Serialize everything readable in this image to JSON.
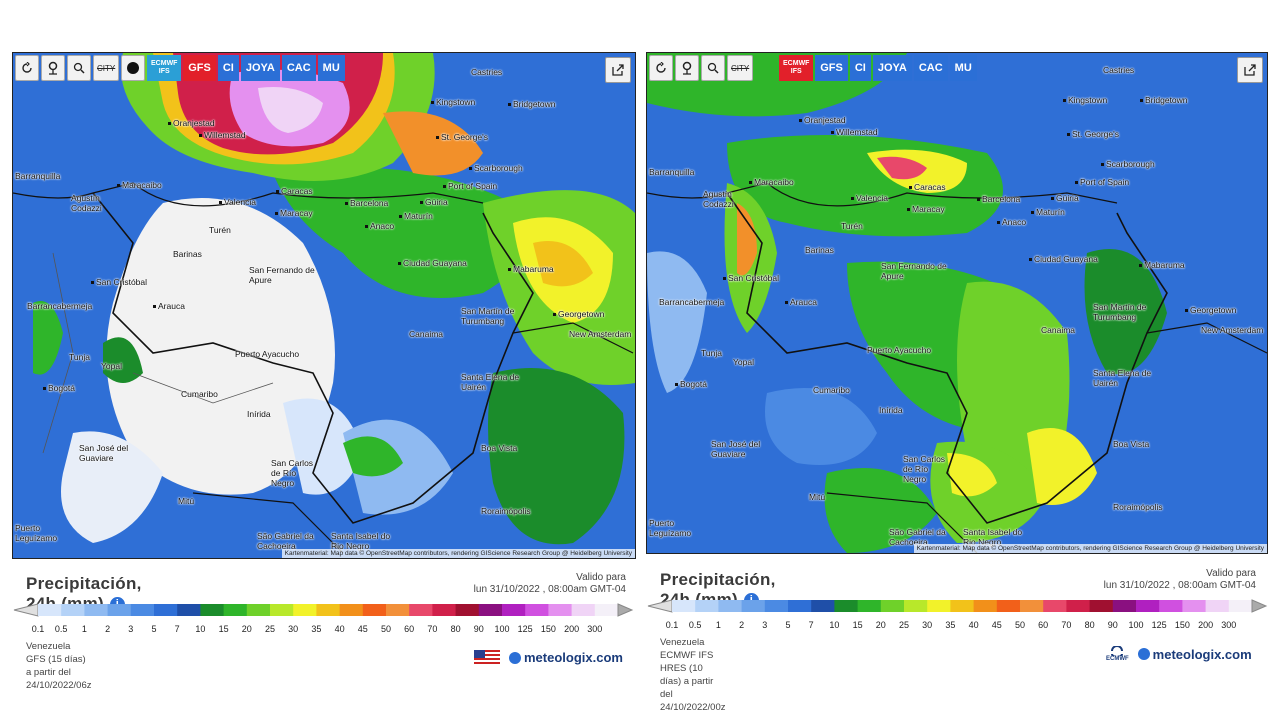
{
  "toolbar": {
    "city_label": "CITY",
    "models_left": [
      "ECMWF IFS",
      "GFS",
      "CI",
      "JOYA",
      "CAC",
      "MU"
    ],
    "active_left": "GFS",
    "models_right": [
      "ECMWF IFS",
      "GFS",
      "CI",
      "JOYA",
      "CAC",
      "MU"
    ],
    "active_right": "ECMWF IFS"
  },
  "cities": [
    "Castries",
    "Kingstown",
    "Bridgetown",
    "Oranjestad",
    "Willemstad",
    "St. George's",
    "Scarborough",
    "Port of Spain",
    "Barranquilla",
    "Maracaibo",
    "Caracas",
    "Valencia",
    "Maracay",
    "Barcelona",
    "Güiria",
    "Maturín",
    "Agustín Codazzi",
    "Anaco",
    "Turén",
    "Barinas",
    "Ciudad Guayana",
    "Mabaruma",
    "San Fernando de Apure",
    "San Cristóbal",
    "Arauca",
    "Barrancabermeja",
    "San Martín de Turumbang",
    "Georgetown",
    "New Amsterdam",
    "Canaima",
    "Puerto Ayacucho",
    "Tunja",
    "Yopal",
    "Santa Elena de Uairén",
    "Bogotá",
    "Cumaribo",
    "Inírida",
    "Boa Vista",
    "San José del Guaviare",
    "San Carlos de Río Negro",
    "Mitú",
    "Roraimópolis",
    "Puerto Leguízamo",
    "São Gabriel da Cachoeira",
    "Santa Isabel do Rio Negro"
  ],
  "attribution": "Kartenmaterial: Map data © OpenStreetMap contributors, rendering GIScience Research Group @ Heidelberg University",
  "left": {
    "title": "Precipitación, 24h (mm)",
    "valid_label": "Valido para",
    "valid_date": "lun 31/10/2022 , 08:00am GMT-04",
    "region": "Venezuela",
    "model_run": "GFS  (15 días)  a partir del 24/10/2022/06z",
    "brand": "meteologix.com"
  },
  "right": {
    "title": "Precipitación, 24h (mm)",
    "valid_label": "Valido para",
    "valid_date": "lun 31/10/2022 , 08:00am GMT-04",
    "region": "Venezuela",
    "model_run": "ECMWF IFS HRES  (10 días)  a partir del 24/10/2022/00z",
    "brand": "meteologix.com",
    "ecmwf_logo": "ECMWF"
  },
  "scale": {
    "ticks": [
      "0.1",
      "0.5",
      "1",
      "2",
      "3",
      "5",
      "7",
      "10",
      "15",
      "20",
      "25",
      "30",
      "35",
      "40",
      "45",
      "50",
      "60",
      "70",
      "80",
      "90",
      "100",
      "125",
      "150",
      "200",
      "300"
    ],
    "colors": [
      "#d7e6fb",
      "#b4d2f7",
      "#8fbaf1",
      "#6ba2ea",
      "#4b8ae3",
      "#2f6fd6",
      "#1f4fa8",
      "#1b8c2b",
      "#2fb52a",
      "#6fd12a",
      "#b8e82a",
      "#f2f22a",
      "#f2c21a",
      "#f2901a",
      "#f2601a",
      "#f2903a",
      "#e8486a",
      "#d0204a",
      "#a01030",
      "#8a1080",
      "#b020c0",
      "#d050e0",
      "#e490ef",
      "#f0d4f6",
      "#f4f0f8"
    ]
  }
}
